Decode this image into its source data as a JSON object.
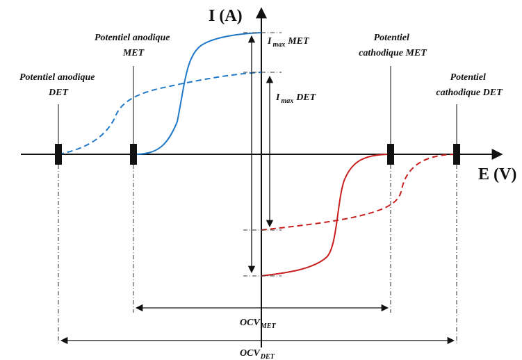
{
  "axes": {
    "y_label": "I (A)",
    "x_label": "E (V)"
  },
  "labels": {
    "anodic_met": [
      "Potentiel anodique",
      "MET"
    ],
    "anodic_det": [
      "Potentiel anodique",
      "DET"
    ],
    "cathodic_met": [
      "Potentiel",
      "cathodique MET"
    ],
    "cathodic_det": [
      "Potentiel",
      "cathodique DET"
    ],
    "imax_met": {
      "main": "I",
      "sub": "max",
      "tail": "MET"
    },
    "imax_det": {
      "main": "I",
      "sub": "max",
      "tail": "DET"
    },
    "ocv_met": {
      "main": "OCV",
      "sub": "MET"
    },
    "ocv_det": {
      "main": "OCV",
      "sub": "DET"
    }
  },
  "colors": {
    "anodic": "#1f78c8",
    "cathodic": "#c81e1e",
    "axis": "#111111"
  },
  "legend_semantics": {
    "solid": "MET",
    "dashed": "DET"
  }
}
